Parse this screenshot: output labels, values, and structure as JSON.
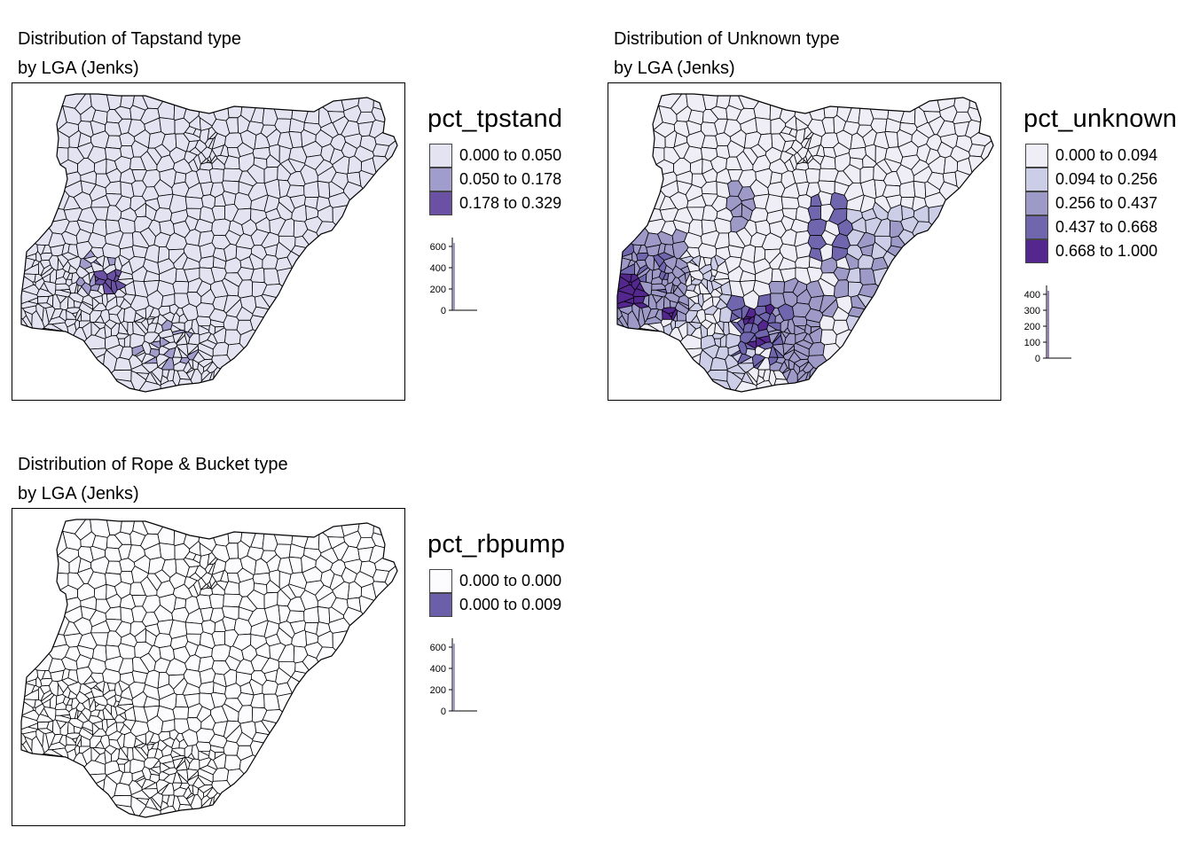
{
  "panels": [
    {
      "id": "tapstand",
      "title_line1": "Distribution of Tapstand type",
      "title_line2": "by LGA (Jenks)",
      "legend_title": "pct_tpstand",
      "legend": [
        {
          "label": "0.000 to 0.050",
          "color": "#e4e3f1"
        },
        {
          "label": "0.050 to 0.178",
          "color": "#a09dcc"
        },
        {
          "label": "0.178 to 0.329",
          "color": "#6a51a3"
        }
      ],
      "hist_ticks": [
        "0",
        "200",
        "400",
        "600"
      ],
      "dominant_class": 0
    },
    {
      "id": "unknown",
      "title_line1": "Distribution of Unknown type",
      "title_line2": "by LGA (Jenks)",
      "legend_title": "pct_unknown",
      "legend": [
        {
          "label": "0.000 to 0.094",
          "color": "#efedf5"
        },
        {
          "label": "0.094 to 0.256",
          "color": "#cccde6"
        },
        {
          "label": "0.256 to 0.437",
          "color": "#9e9ac8"
        },
        {
          "label": "0.437 to 0.668",
          "color": "#7066ae"
        },
        {
          "label": "0.668 to 1.000",
          "color": "#54278f"
        }
      ],
      "hist_ticks": [
        "0",
        "100",
        "200",
        "300",
        "400"
      ],
      "dominant_class": 0
    },
    {
      "id": "rbpump",
      "title_line1": "Distribution of Rope & Bucket type",
      "title_line2": "by LGA (Jenks)",
      "legend_title": "pct_rbpump",
      "legend": [
        {
          "label": "0.000 to 0.000",
          "color": "#fcfbfd"
        },
        {
          "label": "0.000 to 0.009",
          "color": "#6a5fa8"
        }
      ],
      "hist_ticks": [
        "0",
        "200",
        "400",
        "600"
      ],
      "dominant_class": 0
    }
  ]
}
